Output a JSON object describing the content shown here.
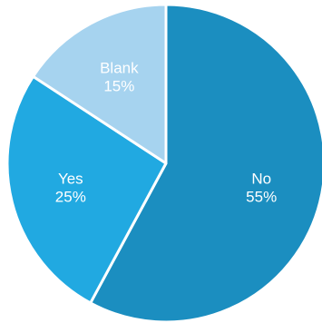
{
  "chart_data": {
    "type": "pie",
    "title": "",
    "start_angle_deg": 0,
    "direction": "clockwise",
    "legend": "none",
    "slices": [
      {
        "name": "No",
        "value": 55,
        "label": "55%",
        "color": "#1b8ec0"
      },
      {
        "name": "Yes",
        "value": 25,
        "label": "25%",
        "color": "#21a9e1"
      },
      {
        "name": "Blank",
        "value": 15,
        "label": "15%",
        "color": "#a6d3ef"
      }
    ]
  }
}
